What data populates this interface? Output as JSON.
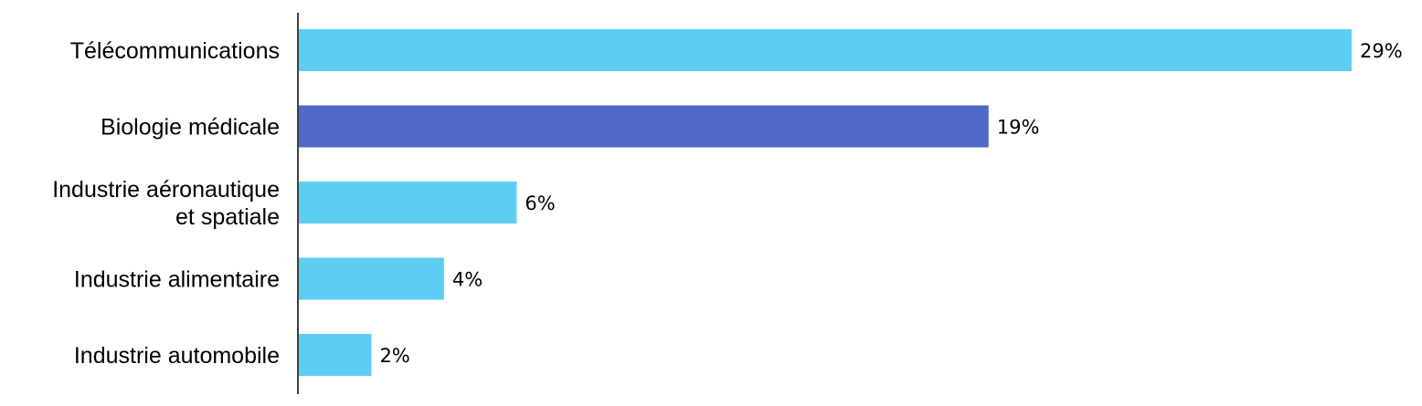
{
  "chart_data": {
    "type": "bar",
    "orientation": "horizontal",
    "categories": [
      [
        "Télécommunications"
      ],
      [
        "Biologie médicale"
      ],
      [
        "Industrie aéronautique",
        "et spatiale"
      ],
      [
        "Industrie alimentaire"
      ],
      [
        "Industrie automobile"
      ]
    ],
    "values": [
      29,
      19,
      6,
      4,
      2
    ],
    "data_labels": [
      "29%",
      "19%",
      "6%",
      "4%",
      "2%"
    ],
    "unit": "%",
    "colors": [
      "#5ECDF2",
      "#5069C8",
      "#5ECDF2",
      "#5ECDF2",
      "#5ECDF2"
    ],
    "highlighted_category_index": 1,
    "xlim": [
      0,
      29
    ],
    "grid": false,
    "legend": "none"
  }
}
